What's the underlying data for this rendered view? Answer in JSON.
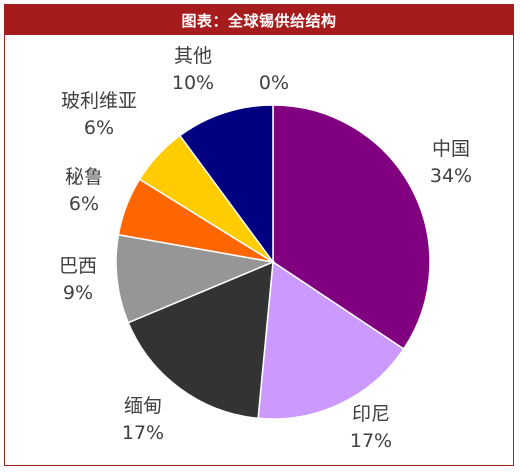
{
  "title": "图表：全球锡供给结构",
  "chart_data": {
    "type": "pie",
    "title": "图表：全球锡供给结构",
    "slices": [
      {
        "name": "中国",
        "value": 34,
        "label": "34%",
        "color": "#800080"
      },
      {
        "name": "印尼",
        "value": 17,
        "label": "17%",
        "color": "#cc99ff"
      },
      {
        "name": "缅甸",
        "value": 17,
        "label": "17%",
        "color": "#333333"
      },
      {
        "name": "巴西",
        "value": 9,
        "label": "9%",
        "color": "#969696"
      },
      {
        "name": "秘鲁",
        "value": 6,
        "label": "6%",
        "color": "#ff6600"
      },
      {
        "name": "玻利维亚",
        "value": 6,
        "label": "6%",
        "color": "#ffcc00"
      },
      {
        "name": "其他",
        "value": 10,
        "label": "10%",
        "color": "#000080"
      }
    ],
    "extra_labels": [
      {
        "label": "0%"
      }
    ]
  }
}
